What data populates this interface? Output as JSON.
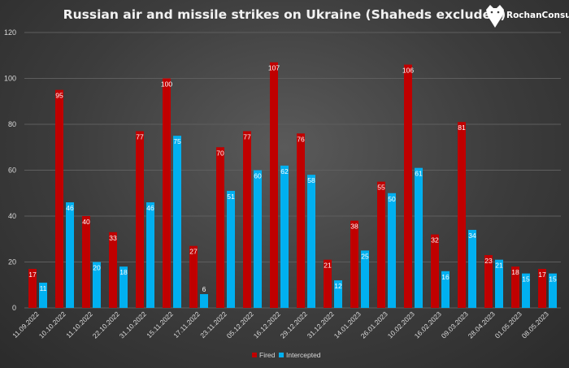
{
  "brand": {
    "name": "RochanConsulting",
    "logo_icon": "bear-head-icon"
  },
  "chart_data": {
    "type": "bar",
    "title": "Russian air and missile strikes on Ukraine (Shaheds excluded)",
    "xlabel": "",
    "ylabel": "",
    "ylim": [
      0,
      120
    ],
    "yticks": [
      0,
      20,
      40,
      60,
      80,
      100,
      120
    ],
    "grid": true,
    "legend_position": "bottom",
    "categories": [
      "11.09.2022",
      "10.10.2022",
      "11.10.2022",
      "22.10.2022",
      "31.10.2022",
      "15.11.2022",
      "17.11.2022",
      "23.11.2022",
      "05.12.2022",
      "16.12.2022",
      "29.12.2022",
      "31.12.2022",
      "14.01.2023",
      "26.01.2023",
      "10.02.2023",
      "16.02.2023",
      "09.03.2023",
      "28.04.2023",
      "01.05.2023",
      "08.05.2023"
    ],
    "series": [
      {
        "name": "Fired",
        "color": "#c00000",
        "values": [
          17,
          95,
          40,
          33,
          77,
          100,
          27,
          70,
          77,
          107,
          76,
          21,
          38,
          55,
          106,
          32,
          81,
          23,
          18,
          17
        ]
      },
      {
        "name": "Intercepted",
        "color": "#00b0f0",
        "values": [
          11,
          46,
          20,
          18,
          46,
          75,
          6,
          51,
          60,
          62,
          58,
          12,
          25,
          50,
          61,
          16,
          34,
          21,
          15,
          15
        ]
      }
    ]
  }
}
